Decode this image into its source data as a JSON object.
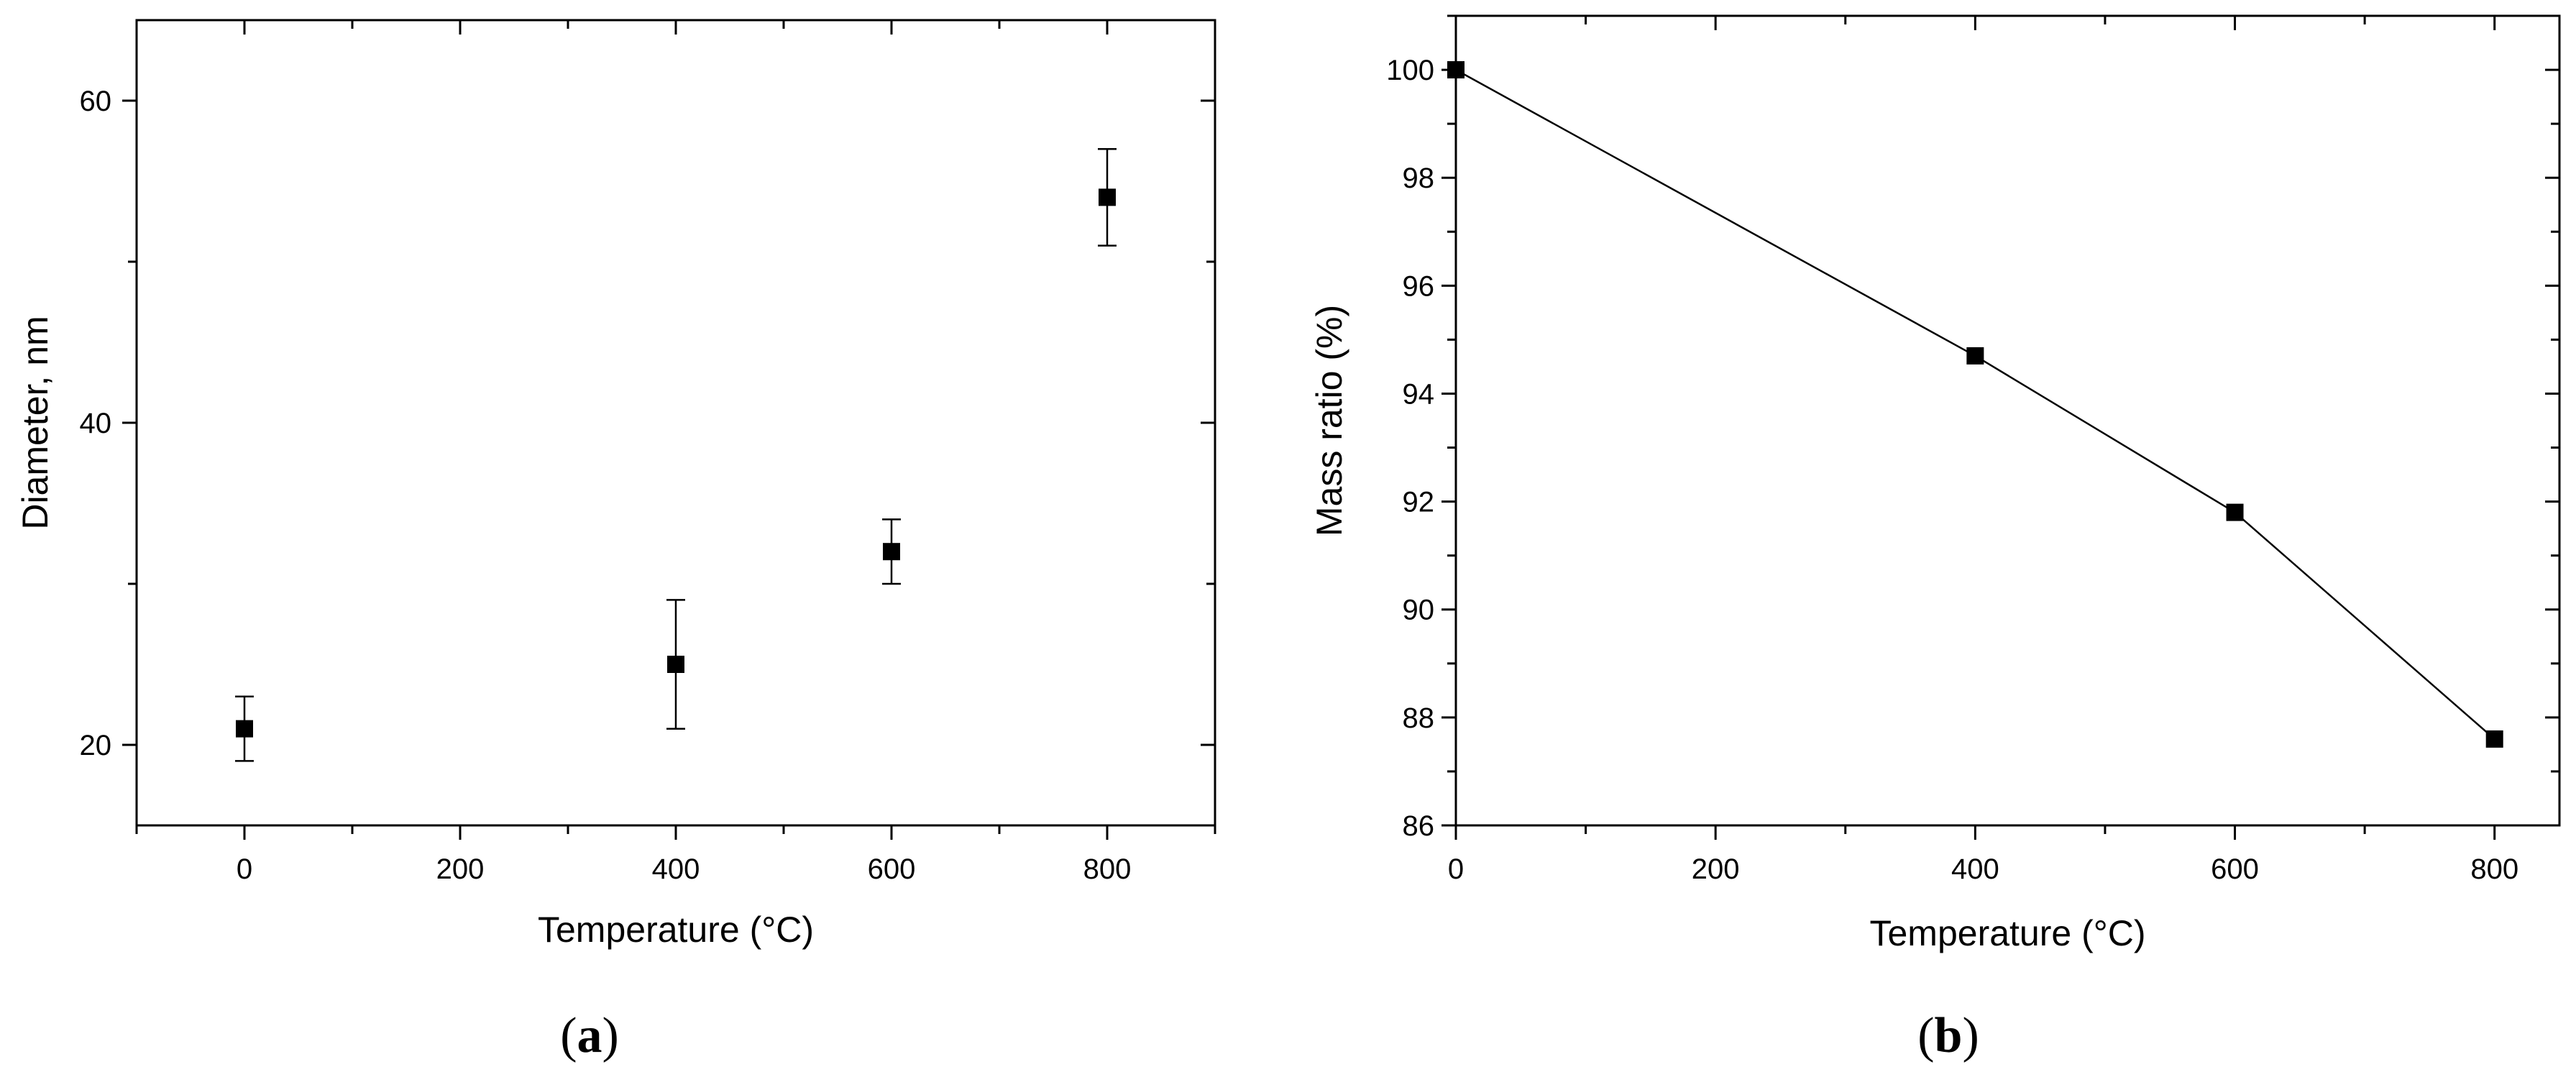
{
  "chart_data": [
    {
      "panel": "(a)",
      "panel_letter": "a",
      "type": "scatter",
      "xlabel": "Temperature (°C)",
      "ylabel": "Diameter, nm",
      "xlim": [
        -100,
        900
      ],
      "ylim": [
        15,
        65
      ],
      "xticks": [
        0,
        200,
        400,
        600,
        800
      ],
      "yticks": [
        20,
        40,
        60
      ],
      "grid": false,
      "marker": "square",
      "connect_points": false,
      "series": [
        {
          "x": [
            0,
            400,
            600,
            800
          ],
          "y": [
            21,
            25,
            32,
            54
          ],
          "y_error": [
            2,
            4,
            2,
            3
          ]
        }
      ]
    },
    {
      "panel": "(b)",
      "panel_letter": "b",
      "type": "line",
      "xlabel": "Temperature (°C)",
      "ylabel": "Mass ratio (%)",
      "xlim": [
        0,
        850
      ],
      "ylim": [
        86,
        101
      ],
      "xticks": [
        0,
        200,
        400,
        600,
        800
      ],
      "yticks": [
        86,
        88,
        90,
        92,
        94,
        96,
        98,
        100
      ],
      "grid": false,
      "marker": "square",
      "connect_points": true,
      "series": [
        {
          "x": [
            0,
            400,
            600,
            800
          ],
          "y": [
            100,
            94.7,
            91.8,
            87.6
          ]
        }
      ]
    }
  ],
  "colors": {
    "axes": "#000000",
    "marker": "#000000",
    "background": "#ffffff"
  }
}
